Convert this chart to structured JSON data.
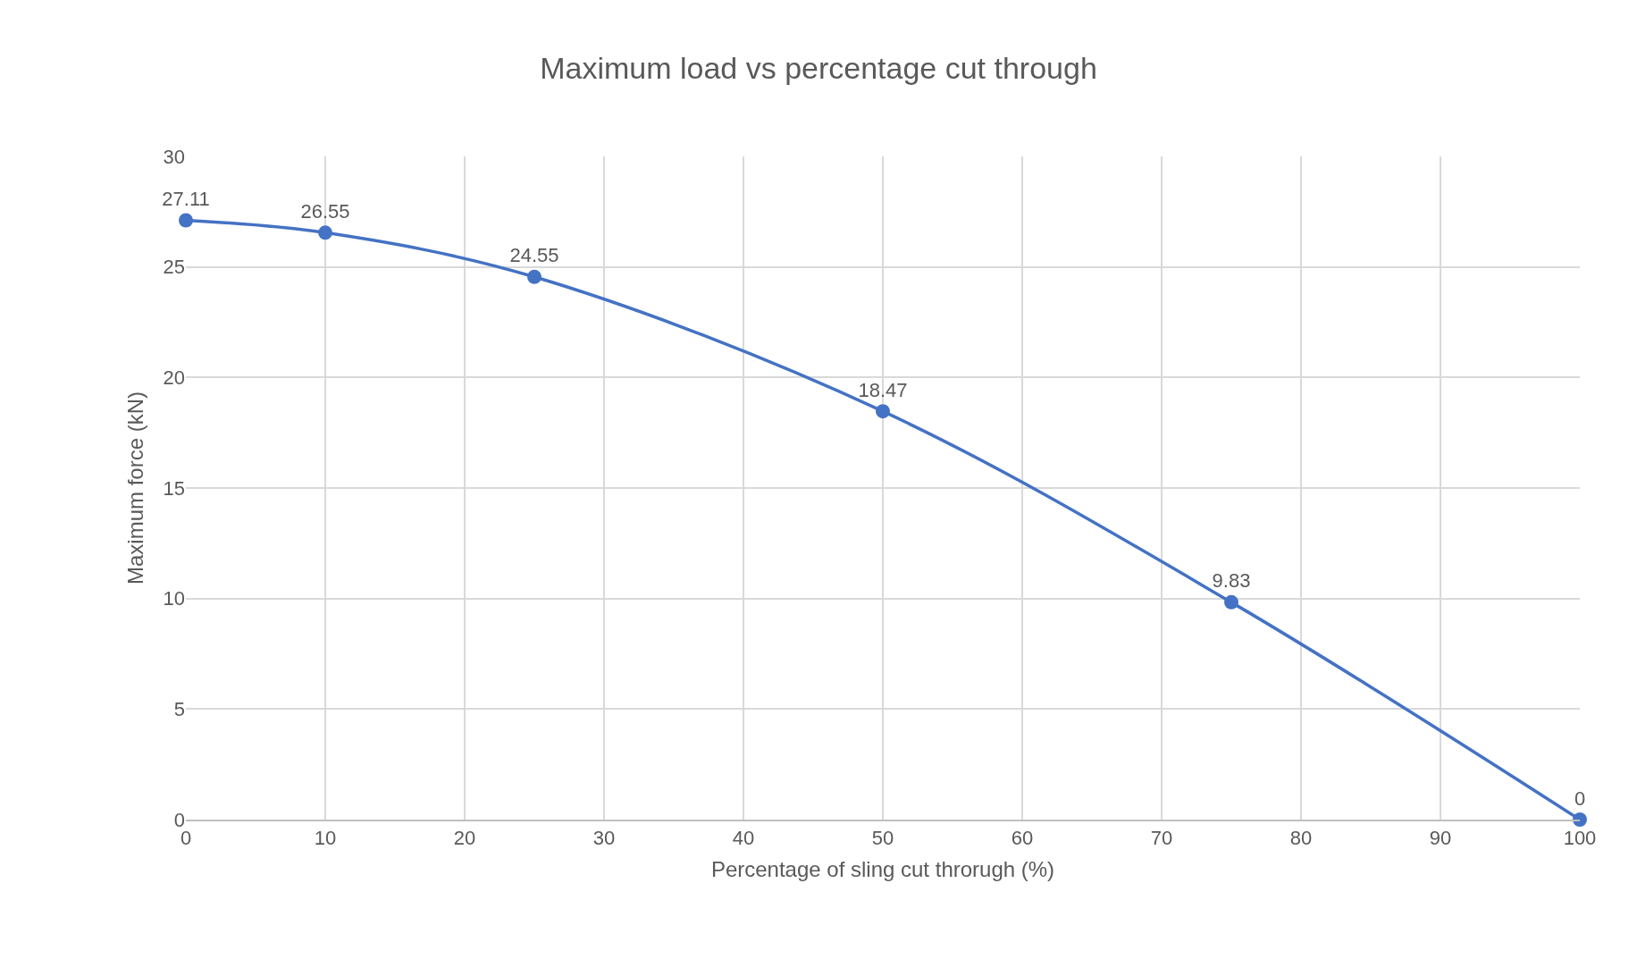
{
  "chart_data": {
    "type": "line",
    "title": "Maximum load vs percentage cut through",
    "xlabel": "Percentage of sling cut throrugh (%)",
    "ylabel": "Maximum force (kN)",
    "x": [
      0,
      10,
      25,
      50,
      75,
      100
    ],
    "series": [
      {
        "color": "#4472c4",
        "values": [
          27.11,
          26.55,
          24.55,
          18.47,
          9.83,
          0
        ]
      }
    ],
    "xlim": [
      0,
      100
    ],
    "xticks": [
      0,
      10,
      20,
      30,
      40,
      50,
      60,
      70,
      80,
      90,
      100
    ],
    "ylim": [
      0,
      30
    ],
    "yticks": [
      0,
      5,
      10,
      15,
      20,
      25,
      30
    ],
    "grid": true,
    "marker": "circle",
    "line_style": "solid",
    "data_labels": true
  }
}
